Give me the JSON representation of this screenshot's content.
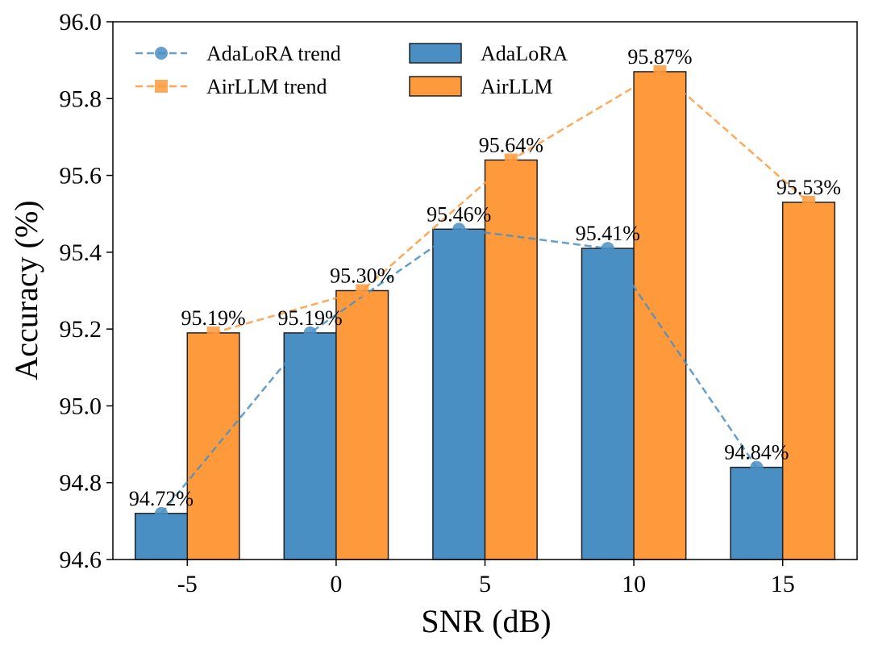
{
  "chart_data": {
    "type": "bar",
    "categories": [
      "-5",
      "0",
      "5",
      "10",
      "15"
    ],
    "series": [
      {
        "name": "AdaLoRA",
        "values": [
          94.72,
          95.19,
          95.46,
          95.41,
          94.84
        ],
        "color": "#4a8fc3"
      },
      {
        "name": "AirLLM",
        "values": [
          95.19,
          95.3,
          95.64,
          95.87,
          95.53
        ],
        "color": "#ff9a3c"
      }
    ],
    "trend_series": [
      {
        "name": "AdaLoRA trend",
        "of": "AdaLoRA",
        "marker": "circle",
        "color": "#4a8fc3"
      },
      {
        "name": "AirLLM trend",
        "of": "AirLLM",
        "marker": "square",
        "color": "#ff9a3c"
      }
    ],
    "data_labels": {
      "AdaLoRA": [
        "94.72%",
        "95.19%",
        "95.46%",
        "95.41%",
        "94.84%"
      ],
      "AirLLM": [
        "95.19%",
        "95.30%",
        "95.64%",
        "95.87%",
        "95.53%"
      ]
    },
    "xlabel": "SNR (dB)",
    "ylabel": "Accuracy (%)",
    "ylim": [
      94.6,
      96.0
    ],
    "yticks": [
      "94.6",
      "94.8",
      "95.0",
      "95.2",
      "95.4",
      "95.6",
      "95.8",
      "96.0"
    ],
    "grid": false,
    "legend": {
      "placement": "top-left",
      "entries": [
        "AdaLoRA trend",
        "AirLLM trend",
        "AdaLoRA",
        "AirLLM"
      ]
    }
  }
}
